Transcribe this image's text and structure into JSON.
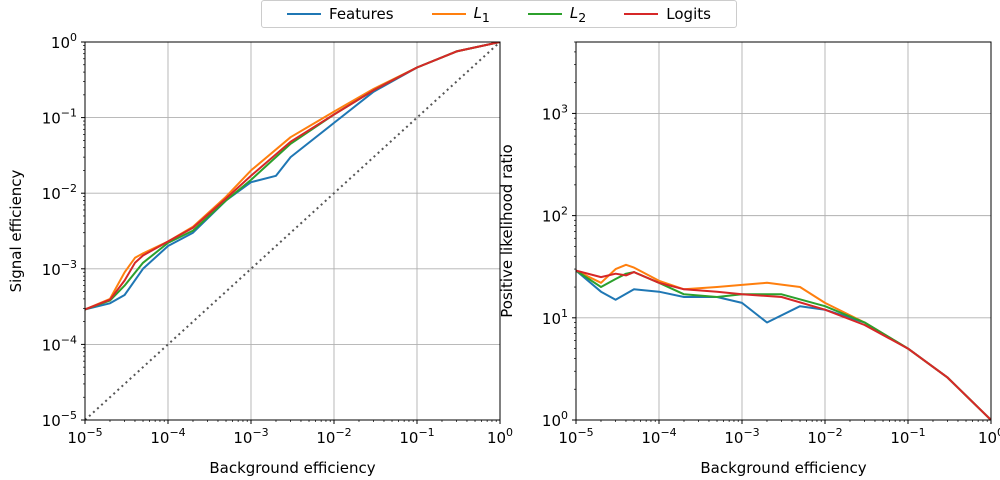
{
  "chart_data": [
    {
      "type": "line",
      "xlabel": "Background efficiency",
      "ylabel": "Signal efficiency",
      "xscale": "log",
      "yscale": "log",
      "xlim": [
        1e-05,
        1
      ],
      "ylim": [
        1e-05,
        1
      ],
      "grid": true,
      "x_ticks": [
        1e-05,
        0.0001,
        0.001,
        0.01,
        0.1,
        1
      ],
      "y_ticks": [
        1e-05,
        0.0001,
        0.001,
        0.01,
        0.1,
        1
      ],
      "reference_line": {
        "style": "dotted",
        "color": "#555555",
        "x": [
          1e-05,
          1
        ],
        "y": [
          1e-05,
          1
        ]
      },
      "series": [
        {
          "name": "Features",
          "color": "#1f77b4",
          "x": [
            1e-05,
            2e-05,
            3e-05,
            5e-05,
            0.0001,
            0.0002,
            0.0005,
            0.001,
            0.002,
            0.003,
            0.01,
            0.03,
            0.1,
            0.3,
            1
          ],
          "y": [
            0.00029,
            0.00035,
            0.00045,
            0.001,
            0.002,
            0.003,
            0.008,
            0.014,
            0.017,
            0.03,
            0.085,
            0.22,
            0.46,
            0.75,
            1
          ]
        },
        {
          "name": "L_1",
          "color": "#ff7f0e",
          "x": [
            1e-05,
            2e-05,
            3e-05,
            4e-05,
            5e-05,
            0.0001,
            0.0002,
            0.0005,
            0.001,
            0.003,
            0.01,
            0.03,
            0.1,
            0.3,
            1
          ],
          "y": [
            0.00029,
            0.0004,
            0.0009,
            0.0014,
            0.0016,
            0.0023,
            0.0036,
            0.009,
            0.02,
            0.055,
            0.12,
            0.24,
            0.46,
            0.75,
            1
          ]
        },
        {
          "name": "L_2",
          "color": "#2ca02c",
          "x": [
            1e-05,
            2e-05,
            3e-05,
            5e-05,
            0.0001,
            0.0002,
            0.0005,
            0.001,
            0.003,
            0.01,
            0.03,
            0.1,
            0.3,
            1
          ],
          "y": [
            0.00029,
            0.00038,
            0.0006,
            0.0012,
            0.0022,
            0.0032,
            0.008,
            0.015,
            0.045,
            0.11,
            0.23,
            0.46,
            0.75,
            1
          ]
        },
        {
          "name": "Logits",
          "color": "#d62728",
          "x": [
            1e-05,
            2e-05,
            3e-05,
            4e-05,
            5e-05,
            0.0001,
            0.0002,
            0.0005,
            0.001,
            0.003,
            0.01,
            0.03,
            0.1,
            0.3,
            1
          ],
          "y": [
            0.00029,
            0.00039,
            0.0007,
            0.0012,
            0.0015,
            0.0023,
            0.0035,
            0.0085,
            0.017,
            0.048,
            0.11,
            0.23,
            0.46,
            0.75,
            1
          ]
        }
      ]
    },
    {
      "type": "line",
      "xlabel": "Background efficiency",
      "ylabel": "Positive likelihood ratio",
      "xscale": "log",
      "yscale": "log",
      "xlim": [
        1e-05,
        1
      ],
      "ylim": [
        1,
        5000
      ],
      "grid": true,
      "x_ticks": [
        1e-05,
        0.0001,
        0.001,
        0.01,
        0.1,
        1
      ],
      "y_ticks": [
        1,
        10,
        100,
        1000
      ],
      "series": [
        {
          "name": "Features",
          "color": "#1f77b4",
          "x": [
            1e-05,
            2e-05,
            3e-05,
            5e-05,
            0.0001,
            0.0002,
            0.0005,
            0.001,
            0.002,
            0.005,
            0.01,
            0.03,
            0.1,
            0.3,
            1
          ],
          "y": [
            29,
            18,
            15,
            19,
            18,
            16,
            16,
            14,
            9,
            13,
            12,
            9,
            5,
            2.6,
            1
          ]
        },
        {
          "name": "L_1",
          "color": "#ff7f0e",
          "x": [
            1e-05,
            2e-05,
            3e-05,
            4e-05,
            5e-05,
            0.0001,
            0.0002,
            0.0005,
            0.001,
            0.002,
            0.005,
            0.01,
            0.03,
            0.1,
            0.3,
            1
          ],
          "y": [
            29,
            22,
            30,
            33,
            31,
            23,
            19,
            20,
            21,
            22,
            20,
            14,
            9,
            5,
            2.6,
            1
          ]
        },
        {
          "name": "L_2",
          "color": "#2ca02c",
          "x": [
            1e-05,
            2e-05,
            3e-05,
            4e-05,
            5e-05,
            0.0001,
            0.0002,
            0.0005,
            0.001,
            0.003,
            0.01,
            0.03,
            0.1,
            0.3,
            1
          ],
          "y": [
            29,
            20,
            24,
            27,
            28,
            22,
            17,
            16,
            17,
            17,
            13,
            9,
            5,
            2.6,
            1
          ]
        },
        {
          "name": "Logits",
          "color": "#d62728",
          "x": [
            1e-05,
            2e-05,
            3e-05,
            4e-05,
            5e-05,
            0.0001,
            0.0002,
            0.0005,
            0.001,
            0.003,
            0.01,
            0.03,
            0.1,
            0.3,
            1
          ],
          "y": [
            29,
            25,
            27,
            26,
            28,
            22,
            19,
            18,
            17,
            16,
            12,
            8.5,
            5,
            2.6,
            1
          ]
        }
      ]
    }
  ],
  "legend": {
    "placement": "top-center",
    "items": [
      {
        "label": "Features",
        "color": "#1f77b4"
      },
      {
        "label": "L",
        "sub": "1",
        "color": "#ff7f0e"
      },
      {
        "label": "L",
        "sub": "2",
        "color": "#2ca02c"
      },
      {
        "label": "Logits",
        "color": "#d62728"
      }
    ]
  }
}
